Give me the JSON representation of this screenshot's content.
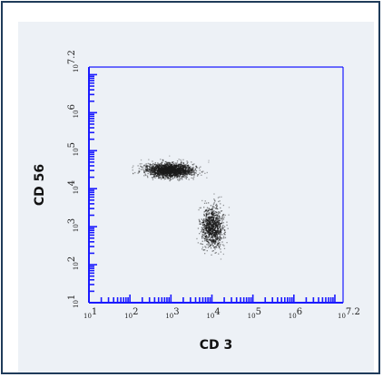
{
  "chart_data": {
    "type": "scatter",
    "title": "",
    "xlabel": "CD 3",
    "ylabel": "CD 56",
    "scale": "log",
    "xlim": [
      1,
      7.2
    ],
    "ylim": [
      1,
      7.2
    ],
    "x_tick_labels": [
      {
        "base": "10",
        "exp": "1"
      },
      {
        "base": "10",
        "exp": "2"
      },
      {
        "base": "10",
        "exp": "3"
      },
      {
        "base": "10",
        "exp": "4"
      },
      {
        "base": "10",
        "exp": "5"
      },
      {
        "base": "10",
        "exp": "6"
      },
      {
        "base": "10",
        "exp": "7.2"
      }
    ],
    "y_tick_labels": [
      {
        "base": "10",
        "exp": "1"
      },
      {
        "base": "10",
        "exp": "2"
      },
      {
        "base": "10",
        "exp": "3"
      },
      {
        "base": "10",
        "exp": "4"
      },
      {
        "base": "10",
        "exp": "5"
      },
      {
        "base": "10",
        "exp": "6"
      },
      {
        "base": "10",
        "exp": "7.2"
      }
    ],
    "grid": false,
    "axis_color": "#1a1aff",
    "point_color": "#1a1a1a",
    "populations": [
      {
        "center_log_x": 2.95,
        "center_log_y": 4.5,
        "spread_log_x": 0.55,
        "spread_log_y": 0.18
      },
      {
        "center_log_x": 4.0,
        "center_log_y": 3.0,
        "spread_log_x": 0.25,
        "spread_log_y": 0.5
      }
    ]
  }
}
